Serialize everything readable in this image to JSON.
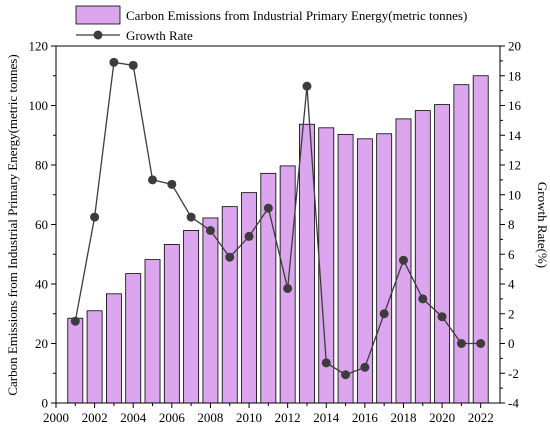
{
  "chart_data": {
    "type": "bar",
    "title": "",
    "x": [
      2001,
      2002,
      2003,
      2004,
      2005,
      2006,
      2007,
      2008,
      2009,
      2010,
      2011,
      2012,
      2013,
      2014,
      2015,
      2016,
      2017,
      2018,
      2019,
      2020,
      2021,
      2022
    ],
    "series": [
      {
        "name": "Carbon Emissions from Industrial Primary Energy(metric tonnes)",
        "kind": "bar",
        "axis": "left",
        "color": "#dca6ee",
        "values": [
          28.5,
          31,
          36.7,
          43.5,
          48.2,
          53.3,
          58,
          62.2,
          66,
          70.7,
          77.2,
          79.7,
          93.7,
          92.5,
          90.3,
          88.8,
          90.5,
          95.5,
          98.3,
          100.3,
          107,
          110
        ]
      },
      {
        "name": "Growth Rate",
        "kind": "line",
        "axis": "right",
        "color": "#3c3c3c",
        "values": [
          1.5,
          8.5,
          18.9,
          18.7,
          11,
          10.7,
          8.5,
          7.6,
          5.8,
          7.2,
          9.1,
          3.7,
          17.3,
          -1.3,
          -2.1,
          -1.6,
          2,
          5.6,
          3,
          1.8,
          0,
          0
        ]
      }
    ],
    "xlim": [
      2000,
      2023
    ],
    "xticks": [
      "2000",
      "2002",
      "2004",
      "2006",
      "2008",
      "2010",
      "2012",
      "2014",
      "2016",
      "2018",
      "2020",
      "2022"
    ],
    "ylim": [
      0,
      120
    ],
    "yticks": [
      "0",
      "20",
      "40",
      "60",
      "80",
      "100",
      "120"
    ],
    "y2lim": [
      -4,
      20
    ],
    "y2ticks": [
      "-4",
      "-2",
      "0",
      "2",
      "4",
      "6",
      "8",
      "10",
      "12",
      "14",
      "16",
      "18",
      "20"
    ],
    "xlabel": "",
    "ylabel": "Carbon Emissions from Industrial Primary Energy(metric tonnes)",
    "y2label": "Growth Rate(%)",
    "legend_position": "top-left",
    "grid": false
  }
}
